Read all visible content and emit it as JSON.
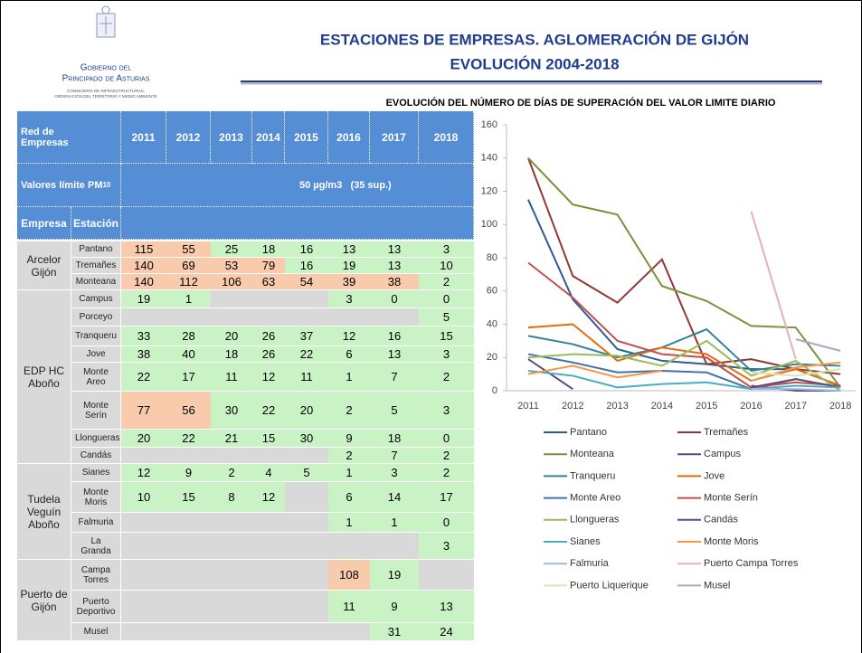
{
  "header": {
    "logo_line1": "Gobierno del",
    "logo_line2": "Principado de Asturias",
    "logo_sub1": "CONSEJERÍA DE INFRAESTRUCTURAS,",
    "logo_sub2": "ORDENACIÓN DEL TERRITORIO Y MEDIO AMBIENTE",
    "title": [
      "ESTACIONES DE EMPRESAS. AGLOMERACIÓN DE GIJÓN",
      "EVOLUCIÓN 2004-2018"
    ]
  },
  "table": {
    "header": {
      "network": "Red de Empresas",
      "years": [
        "2011",
        "2012",
        "2013",
        "2014",
        "2015",
        "2016",
        "2017",
        "2018"
      ],
      "limit_label": "Valores límite PM",
      "limit_sub": "10",
      "limit_value": "50 µg/m3   (35 sup.)",
      "company": "Empresa",
      "station": "Estación"
    },
    "groups": [
      {
        "company": "Arcelor Gijón",
        "rows": [
          {
            "station": "Pantano",
            "values": [
              115,
              55,
              25,
              18,
              16,
              13,
              13,
              3
            ],
            "colors": [
              "#f8cbad",
              "#f8cbad",
              "#c9f2c5",
              "#c9f2c5",
              "#c9f2c5",
              "#c9f2c5",
              "#c9f2c5",
              "#c9f2c5"
            ]
          },
          {
            "station": "Tremañes",
            "values": [
              140,
              69,
              53,
              79,
              16,
              19,
              13,
              10
            ],
            "colors": [
              "#f8cbad",
              "#f8cbad",
              "#f8cbad",
              "#f8cbad",
              "#c9f2c5",
              "#c9f2c5",
              "#c9f2c5",
              "#c9f2c5"
            ]
          },
          {
            "station": "Monteana",
            "values": [
              140,
              112,
              106,
              63,
              54,
              39,
              38,
              2
            ],
            "colors": [
              "#f8cbad",
              "#f8cbad",
              "#f8cbad",
              "#f8cbad",
              "#f8cbad",
              "#f8cbad",
              "#f8cbad",
              "#c9f2c5"
            ]
          }
        ]
      },
      {
        "company": "EDP HC Aboño",
        "rows": [
          {
            "station": "Campus",
            "values": [
              19,
              1,
              null,
              null,
              null,
              3,
              0,
              0
            ],
            "colors": [
              "#c9f2c5",
              "#c9f2c5",
              null,
              null,
              null,
              "#c9f2c5",
              "#c9f2c5",
              "#c9f2c5"
            ]
          },
          {
            "station": "Porceyo",
            "values": [
              null,
              null,
              null,
              null,
              null,
              null,
              null,
              5
            ],
            "colors": [
              null,
              null,
              null,
              null,
              null,
              null,
              null,
              "#c9f2c5"
            ]
          },
          {
            "station": "Tranqueru",
            "values": [
              33,
              28,
              20,
              26,
              37,
              12,
              16,
              15
            ],
            "colors": [
              "#c9f2c5",
              "#c9f2c5",
              "#c9f2c5",
              "#c9f2c5",
              "#c9f2c5",
              "#c9f2c5",
              "#c9f2c5",
              "#c9f2c5"
            ]
          },
          {
            "station": "Jove",
            "values": [
              38,
              40,
              18,
              26,
              22,
              6,
              13,
              3
            ],
            "colors": [
              "#c9f2c5",
              "#c9f2c5",
              "#c9f2c5",
              "#c9f2c5",
              "#c9f2c5",
              "#c9f2c5",
              "#c9f2c5",
              "#c9f2c5"
            ]
          },
          {
            "station": "Monte Areo",
            "values": [
              22,
              17,
              11,
              12,
              11,
              1,
              7,
              2
            ],
            "colors": [
              "#c9f2c5",
              "#c9f2c5",
              "#c9f2c5",
              "#c9f2c5",
              "#c9f2c5",
              "#c9f2c5",
              "#c9f2c5",
              "#c9f2c5"
            ]
          },
          {
            "station": "Monte Serín",
            "values": [
              77,
              56,
              30,
              22,
              20,
              2,
              5,
              3
            ],
            "colors": [
              "#f8cbad",
              "#f8cbad",
              "#c9f2c5",
              "#c9f2c5",
              "#c9f2c5",
              "#c9f2c5",
              "#c9f2c5",
              "#c9f2c5"
            ]
          },
          {
            "station": "Llongueras",
            "values": [
              20,
              22,
              21,
              15,
              30,
              9,
              18,
              0
            ],
            "colors": [
              "#c9f2c5",
              "#c9f2c5",
              "#c9f2c5",
              "#c9f2c5",
              "#c9f2c5",
              "#c9f2c5",
              "#c9f2c5",
              "#c9f2c5"
            ]
          },
          {
            "station": "Candás",
            "values": [
              null,
              null,
              null,
              null,
              null,
              2,
              7,
              2
            ],
            "colors": [
              null,
              null,
              null,
              null,
              null,
              "#c9f2c5",
              "#c9f2c5",
              "#c9f2c5"
            ]
          }
        ]
      },
      {
        "company": "Tudela Veguín Aboño",
        "rows": [
          {
            "station": "Sianes",
            "values": [
              12,
              9,
              2,
              4,
              5,
              1,
              3,
              2
            ],
            "colors": [
              "#c9f2c5",
              "#c9f2c5",
              "#c9f2c5",
              "#c9f2c5",
              "#c9f2c5",
              "#c9f2c5",
              "#c9f2c5",
              "#c9f2c5"
            ]
          },
          {
            "station": "Monte Moris",
            "values": [
              10,
              15,
              8,
              12,
              null,
              6,
              14,
              17
            ],
            "colors": [
              "#c9f2c5",
              "#c9f2c5",
              "#c9f2c5",
              "#c9f2c5",
              null,
              "#c9f2c5",
              "#c9f2c5",
              "#c9f2c5"
            ]
          },
          {
            "station": "Falmuria",
            "values": [
              null,
              null,
              null,
              null,
              null,
              1,
              1,
              0
            ],
            "colors": [
              null,
              null,
              null,
              null,
              null,
              "#c9f2c5",
              "#c9f2c5",
              "#c9f2c5"
            ]
          },
          {
            "station": "La Granda",
            "values": [
              null,
              null,
              null,
              null,
              null,
              null,
              null,
              3
            ],
            "colors": [
              null,
              null,
              null,
              null,
              null,
              null,
              null,
              "#c9f2c5"
            ]
          }
        ]
      },
      {
        "company": "Puerto de Gijón",
        "rows": [
          {
            "station": "Campa Torres",
            "values": [
              null,
              null,
              null,
              null,
              null,
              108,
              19,
              null
            ],
            "colors": [
              null,
              null,
              null,
              null,
              null,
              "#f8cbad",
              "#c9f2c5",
              null
            ]
          },
          {
            "station": "Puerto Deportivo",
            "values": [
              null,
              null,
              null,
              null,
              null,
              11,
              9,
              13
            ],
            "colors": [
              null,
              null,
              null,
              null,
              null,
              "#c9f2c5",
              "#c9f2c5",
              "#c9f2c5"
            ]
          },
          {
            "station": "Musel",
            "values": [
              null,
              null,
              null,
              null,
              null,
              null,
              31,
              24
            ],
            "colors": [
              null,
              null,
              null,
              null,
              null,
              null,
              "#c9f2c5",
              "#c9f2c5"
            ]
          }
        ]
      }
    ]
  },
  "chart_data": {
    "type": "line",
    "title": "EVOLUCIÓN DEL NÚMERO DE DÍAS DE SUPERACIÓN DEL VALOR LIMITE DIARIO",
    "categories": [
      "2011",
      "2012",
      "2013",
      "2014",
      "2015",
      "2016",
      "2017",
      "2018"
    ],
    "ylim": [
      0,
      160
    ],
    "yticks": [
      0,
      20,
      40,
      60,
      80,
      100,
      120,
      140,
      160
    ],
    "grid": false,
    "series": [
      {
        "name": "Pantano",
        "color": "#2f5b93",
        "values": [
          115,
          55,
          25,
          18,
          16,
          13,
          13,
          3
        ]
      },
      {
        "name": "Tremañes",
        "color": "#943634",
        "values": [
          140,
          69,
          53,
          79,
          16,
          19,
          13,
          10
        ]
      },
      {
        "name": "Monteana",
        "color": "#77933c",
        "values": [
          140,
          112,
          106,
          63,
          54,
          39,
          38,
          2
        ]
      },
      {
        "name": "Campus",
        "color": "#5f497a",
        "values": [
          19,
          1,
          null,
          null,
          null,
          3,
          0,
          0
        ]
      },
      {
        "name": "Tranqueru",
        "color": "#31849b",
        "values": [
          33,
          28,
          20,
          26,
          37,
          12,
          16,
          15
        ]
      },
      {
        "name": "Jove",
        "color": "#e46c0a",
        "values": [
          38,
          40,
          18,
          26,
          22,
          6,
          13,
          3
        ]
      },
      {
        "name": "Monte Areo",
        "color": "#4372aa",
        "values": [
          22,
          17,
          11,
          12,
          11,
          1,
          7,
          2
        ]
      },
      {
        "name": "Monte Serín",
        "color": "#c0504d",
        "values": [
          77,
          56,
          30,
          22,
          20,
          2,
          5,
          3
        ]
      },
      {
        "name": "Llongueras",
        "color": "#9bbb59",
        "values": [
          20,
          22,
          21,
          15,
          30,
          9,
          18,
          0
        ]
      },
      {
        "name": "Candás",
        "color": "#604a7b",
        "values": [
          null,
          null,
          null,
          null,
          null,
          2,
          7,
          2
        ]
      },
      {
        "name": "Sianes",
        "color": "#4bacc6",
        "values": [
          12,
          9,
          2,
          4,
          5,
          1,
          3,
          2
        ]
      },
      {
        "name": "Monte Moris",
        "color": "#f79646",
        "values": [
          10,
          15,
          8,
          12,
          null,
          6,
          14,
          17
        ]
      },
      {
        "name": "Falmuria",
        "color": "#a6b6e0",
        "values": [
          null,
          null,
          null,
          null,
          null,
          1,
          1,
          0
        ]
      },
      {
        "name": "Puerto Campa Torres",
        "color": "#e6b0b8",
        "values": [
          null,
          null,
          null,
          null,
          null,
          108,
          19,
          null
        ]
      },
      {
        "name": "Puerto Liquerique",
        "color": "#d7e4bd",
        "values": [
          null,
          null,
          null,
          null,
          null,
          11,
          9,
          13
        ]
      },
      {
        "name": "Musel",
        "color": "#b3a2c7",
        "values": [
          null,
          null,
          null,
          null,
          null,
          null,
          31,
          24
        ]
      }
    ]
  }
}
